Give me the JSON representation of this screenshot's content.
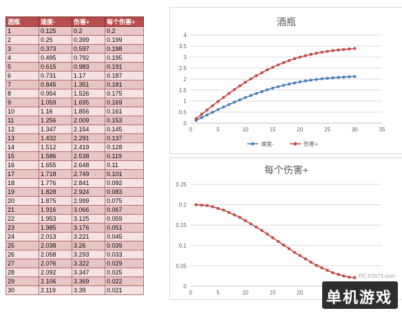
{
  "table": {
    "headers": [
      "酒瓶",
      "速度-",
      "伤害+",
      "每个伤害+"
    ],
    "rows": [
      [
        "1",
        "0.125",
        "0.2",
        "0.2"
      ],
      [
        "2",
        "0.25",
        "0.399",
        "0.199"
      ],
      [
        "3",
        "0.373",
        "0.597",
        "0.198"
      ],
      [
        "4",
        "0.495",
        "0.792",
        "0.195"
      ],
      [
        "5",
        "0.615",
        "0.983",
        "0.191"
      ],
      [
        "6",
        "0.731",
        "1.17",
        "0.187"
      ],
      [
        "7",
        "0.845",
        "1.351",
        "0.181"
      ],
      [
        "8",
        "0.954",
        "1.526",
        "0.175"
      ],
      [
        "9",
        "1.059",
        "1.695",
        "0.169"
      ],
      [
        "10",
        "1.16",
        "1.856",
        "0.161"
      ],
      [
        "11",
        "1.256",
        "2.009",
        "0.153"
      ],
      [
        "12",
        "1.347",
        "2.154",
        "0.145"
      ],
      [
        "13",
        "1.432",
        "2.291",
        "0.137"
      ],
      [
        "14",
        "1.512",
        "2.419",
        "0.128"
      ],
      [
        "15",
        "1.586",
        "2.538",
        "0.119"
      ],
      [
        "16",
        "1.655",
        "2.648",
        "0.11"
      ],
      [
        "17",
        "1.718",
        "2.749",
        "0.101"
      ],
      [
        "18",
        "1.776",
        "2.841",
        "0.092"
      ],
      [
        "19",
        "1.828",
        "2.924",
        "0.083"
      ],
      [
        "20",
        "1.875",
        "2.999",
        "0.075"
      ],
      [
        "21",
        "1.916",
        "3.066",
        "0.067"
      ],
      [
        "22",
        "1.953",
        "3.125",
        "0.059"
      ],
      [
        "23",
        "1.985",
        "3.176",
        "0.051"
      ],
      [
        "24",
        "2.013",
        "3.221",
        "0.045"
      ],
      [
        "25",
        "2.038",
        "3.26",
        "0.039"
      ],
      [
        "26",
        "2.058",
        "3.293",
        "0.033"
      ],
      [
        "27",
        "2.076",
        "3.322",
        "0.029"
      ],
      [
        "28",
        "2.092",
        "3.347",
        "0.025"
      ],
      [
        "29",
        "2.106",
        "3.369",
        "0.022"
      ],
      [
        "30",
        "2.119",
        "3.39",
        "0.021"
      ]
    ]
  },
  "chart_data": [
    {
      "type": "line",
      "title": "酒瓶",
      "xlabel": "",
      "ylabel": "",
      "xlim": [
        0,
        35
      ],
      "ylim": [
        0,
        4
      ],
      "xticks": [
        "0",
        "5",
        "10",
        "15",
        "20",
        "25",
        "30",
        "35"
      ],
      "yticks": [
        "0",
        "0.5",
        "1",
        "1.5",
        "2",
        "2.5",
        "3",
        "3.5",
        "4"
      ],
      "grid": "horizontal",
      "legend": "bottom",
      "x": [
        1,
        2,
        3,
        4,
        5,
        6,
        7,
        8,
        9,
        10,
        11,
        12,
        13,
        14,
        15,
        16,
        17,
        18,
        19,
        20,
        21,
        22,
        23,
        24,
        25,
        26,
        27,
        28,
        29,
        30
      ],
      "series": [
        {
          "name": "速度-",
          "color": "#4a7ebb",
          "values": [
            0.125,
            0.25,
            0.373,
            0.495,
            0.615,
            0.731,
            0.845,
            0.954,
            1.059,
            1.16,
            1.256,
            1.347,
            1.432,
            1.512,
            1.586,
            1.655,
            1.718,
            1.776,
            1.828,
            1.875,
            1.916,
            1.953,
            1.985,
            2.013,
            2.038,
            2.058,
            2.076,
            2.092,
            2.106,
            2.119
          ]
        },
        {
          "name": "伤害+",
          "color": "#be4b48",
          "values": [
            0.2,
            0.399,
            0.597,
            0.792,
            0.983,
            1.17,
            1.351,
            1.526,
            1.695,
            1.856,
            2.009,
            2.154,
            2.291,
            2.419,
            2.538,
            2.648,
            2.749,
            2.841,
            2.924,
            2.999,
            3.066,
            3.125,
            3.176,
            3.221,
            3.26,
            3.293,
            3.322,
            3.347,
            3.369,
            3.39
          ]
        }
      ]
    },
    {
      "type": "line",
      "title": "每个伤害+",
      "xlabel": "",
      "ylabel": "",
      "xlim": [
        0,
        35
      ],
      "ylim": [
        0,
        0.25
      ],
      "xticks": [
        "0",
        "5",
        "10",
        "15",
        "20",
        "25",
        "30",
        "35"
      ],
      "yticks": [
        "0",
        "0.05",
        "0.1",
        "0.15",
        "0.2",
        "0.25"
      ],
      "grid": "horizontal",
      "legend": "none",
      "x": [
        1,
        2,
        3,
        4,
        5,
        6,
        7,
        8,
        9,
        10,
        11,
        12,
        13,
        14,
        15,
        16,
        17,
        18,
        19,
        20,
        21,
        22,
        23,
        24,
        25,
        26,
        27,
        28,
        29,
        30
      ],
      "series": [
        {
          "color": "#be4b48",
          "values": [
            0.2,
            0.199,
            0.198,
            0.195,
            0.191,
            0.187,
            0.181,
            0.175,
            0.169,
            0.161,
            0.153,
            0.145,
            0.137,
            0.128,
            0.119,
            0.11,
            0.101,
            0.092,
            0.083,
            0.075,
            0.067,
            0.059,
            0.051,
            0.045,
            0.039,
            0.033,
            0.029,
            0.025,
            0.022,
            0.021
          ]
        }
      ]
    }
  ],
  "watermark": {
    "site": "PC.07073.com",
    "logo": "单机游戏"
  }
}
